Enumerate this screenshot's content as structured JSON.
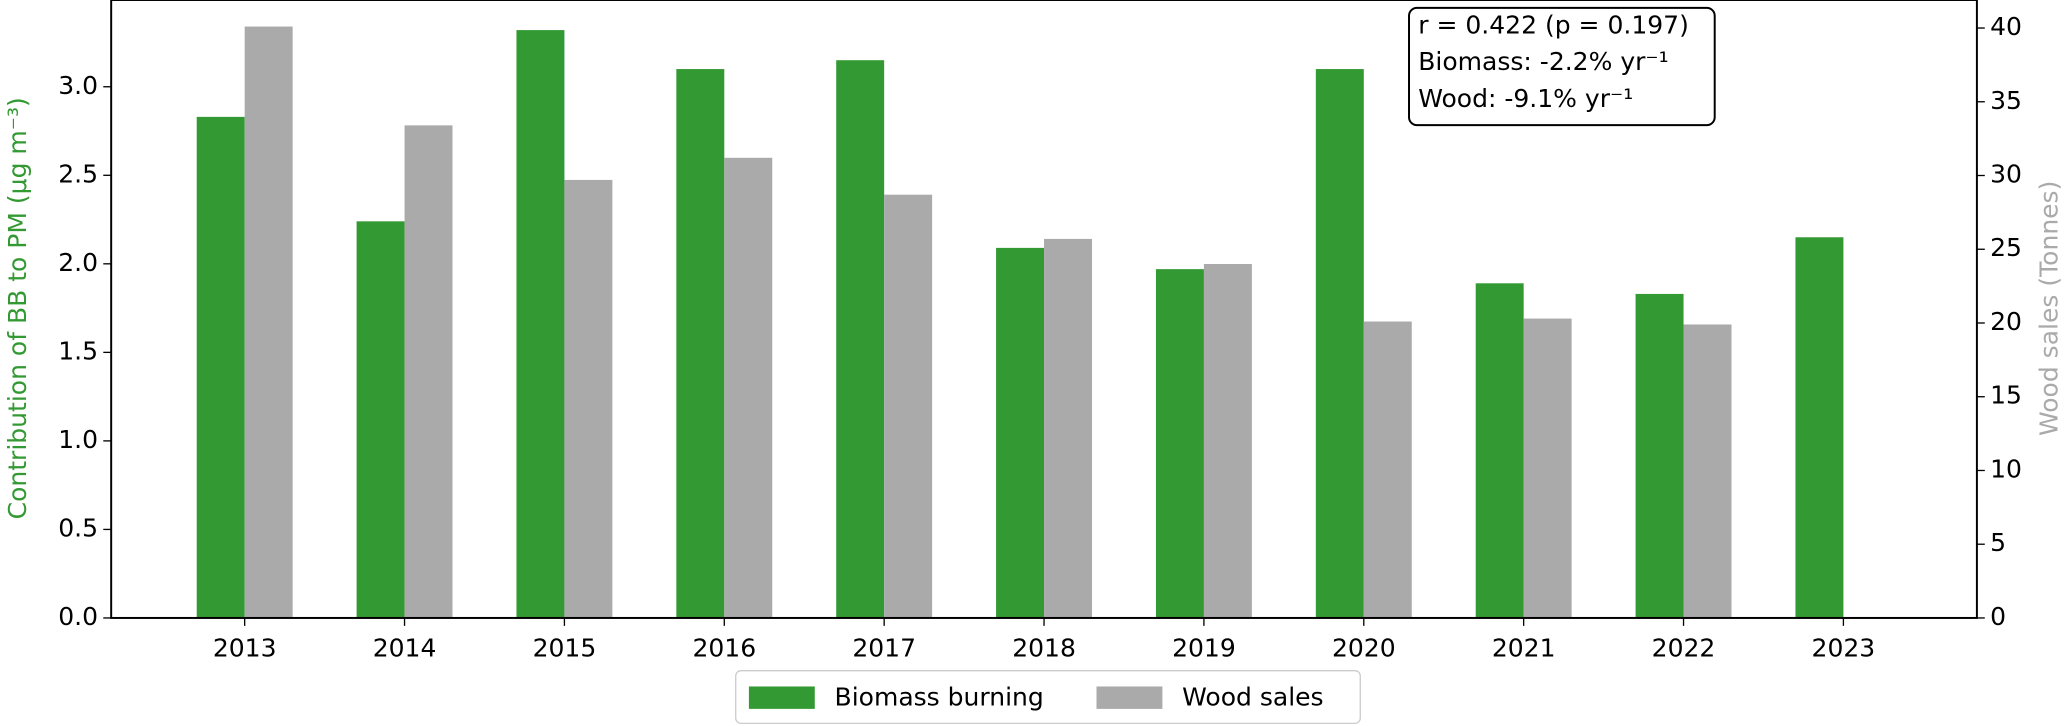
{
  "chart_data": {
    "type": "bar",
    "categories": [
      "2013",
      "2014",
      "2015",
      "2016",
      "2017",
      "2018",
      "2019",
      "2020",
      "2021",
      "2022",
      "2023"
    ],
    "series": [
      {
        "name": "Biomass burning",
        "color": "#339933",
        "values": [
          2.83,
          2.24,
          3.32,
          3.1,
          3.15,
          2.09,
          1.97,
          3.1,
          1.89,
          1.83,
          2.15
        ]
      },
      {
        "name": "Wood sales",
        "color": "#aaaaaa",
        "axis": "y2",
        "values": [
          40.1,
          33.4,
          29.7,
          31.2,
          28.7,
          25.7,
          24.0,
          20.1,
          20.3,
          19.9,
          null
        ]
      }
    ],
    "ylabel": "Contribution of BB to PM (μg m⁻³)",
    "y2label": "Wood sales (Tonnes)",
    "ylim": [
      0,
      3.49
    ],
    "yticks": [
      {
        "value": 0,
        "label": "0.0"
      },
      0.5,
      {
        "value": 1,
        "label": "1.0"
      },
      1.5,
      {
        "value": 2,
        "label": "2.0"
      },
      2.5,
      {
        "value": 3,
        "label": "3.0"
      }
    ],
    "y2lim": [
      0,
      41.9
    ],
    "y2ticks": [
      0,
      5,
      10,
      15,
      20,
      25,
      30,
      35,
      40
    ],
    "annotations": [
      "r = 0.422 (p = 0.197)",
      "Biomass: -2.2% yr⁻¹",
      "Wood: -9.1% yr⁻¹"
    ],
    "legend": "lower center"
  }
}
